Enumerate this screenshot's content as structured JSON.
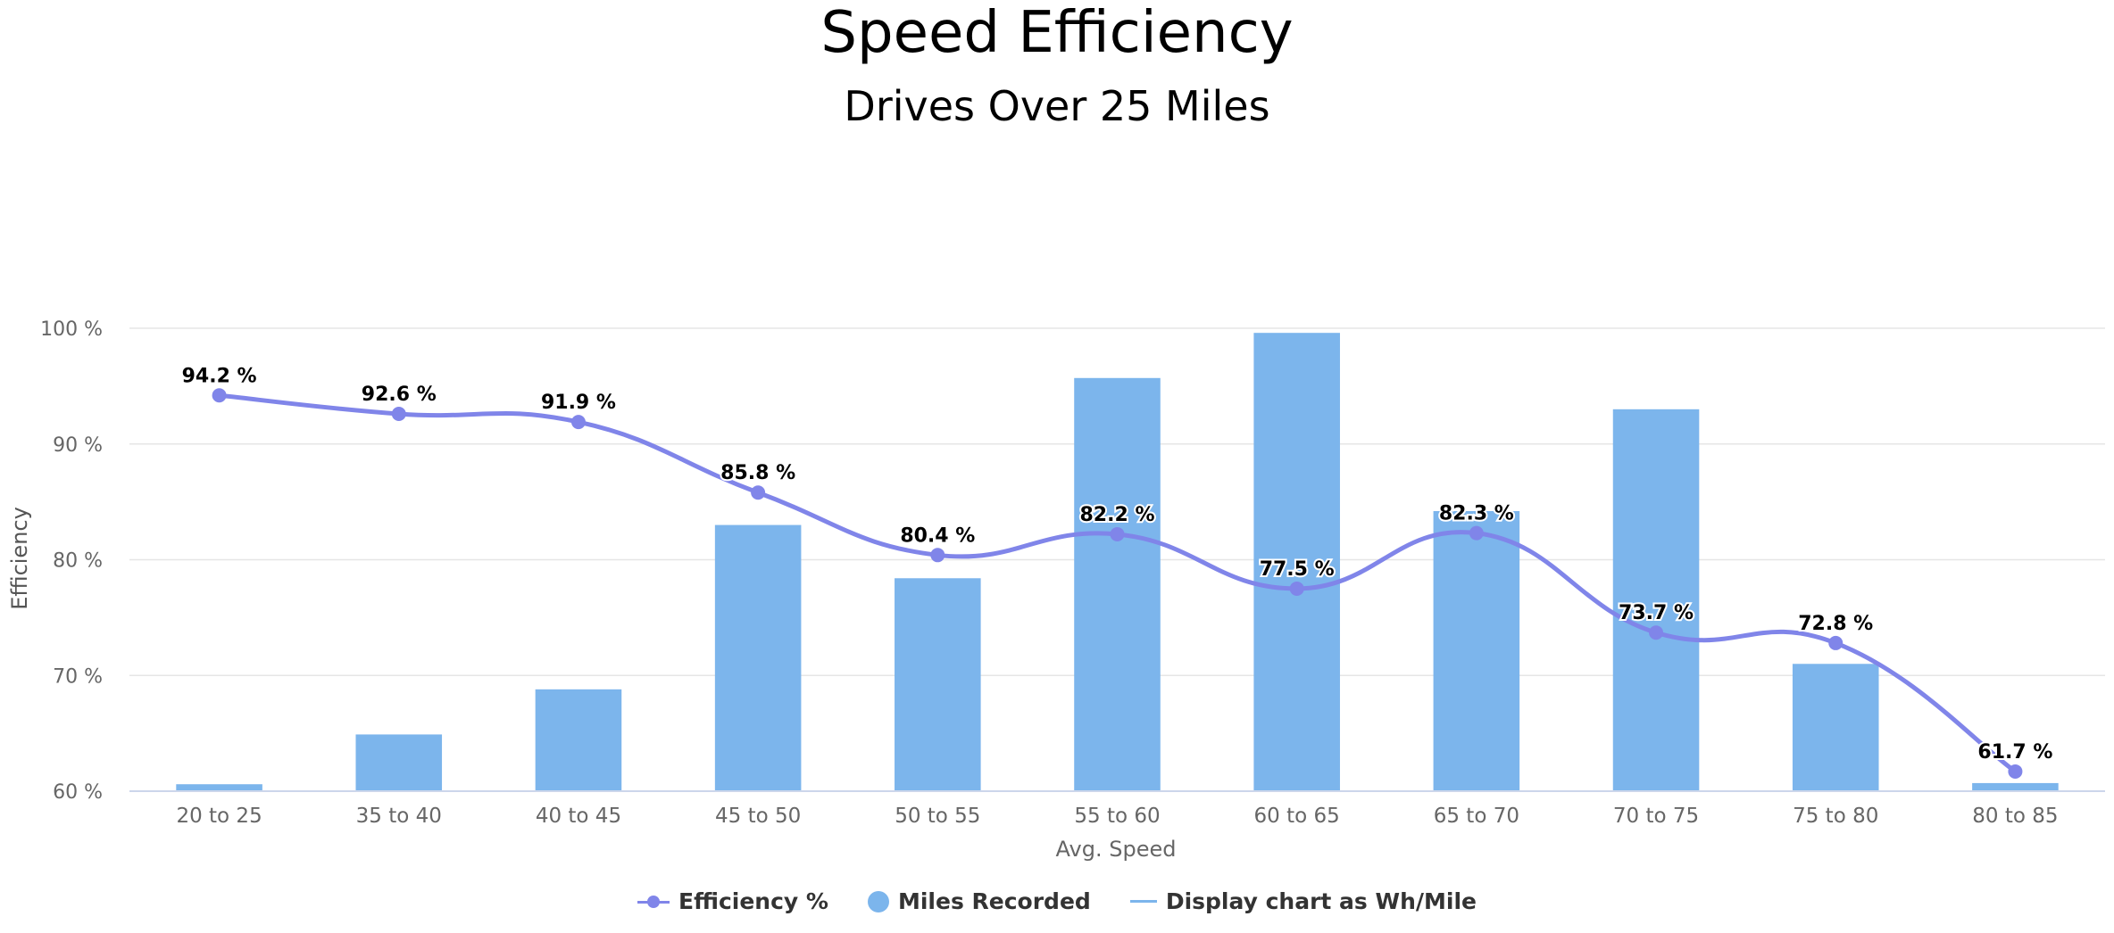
{
  "chart_data": {
    "type": "bar",
    "title": "Speed Efficiency",
    "subtitle": "Drives Over 25 Miles",
    "xlabel": "Avg. Speed",
    "ylabel": "Efficiency",
    "categories": [
      "20 to 25",
      "35 to 40",
      "40 to 45",
      "45 to 50",
      "50 to 55",
      "55 to 60",
      "60 to 65",
      "65 to 70",
      "70 to 75",
      "75 to 80",
      "80 to 85"
    ],
    "yticks": [
      "100 %",
      "90 %",
      "80 %",
      "70 %",
      "60 %"
    ],
    "ylim": [
      60,
      100
    ],
    "grid": true,
    "legend_placement": "bottom",
    "series": [
      {
        "name": "Efficiency %",
        "type": "line",
        "color": "#8085e9",
        "values": [
          94.2,
          92.6,
          91.9,
          85.8,
          80.4,
          82.2,
          77.5,
          82.3,
          73.7,
          72.8,
          61.7
        ],
        "labels": [
          "94.2 %",
          "92.6 %",
          "91.9 %",
          "85.8 %",
          "80.4 %",
          "82.2 %",
          "77.5 %",
          "82.3 %",
          "73.7 %",
          "72.8 %",
          "61.7 %"
        ]
      },
      {
        "name": "Miles Recorded",
        "type": "bar",
        "color": "#7cb5ec",
        "values": [
          0.6,
          4.9,
          8.8,
          23.0,
          18.4,
          35.7,
          39.6,
          24.2,
          33.0,
          11.0,
          0.7
        ]
      }
    ],
    "legend": {
      "efficiency": "Efficiency %",
      "miles": "Miles Recorded",
      "wh": "Display chart as Wh/Mile"
    }
  }
}
